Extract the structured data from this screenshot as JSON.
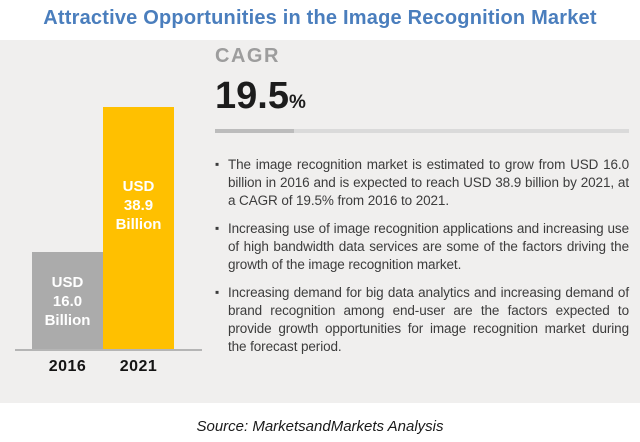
{
  "page": {
    "title": "Attractive Opportunities in the Image Recognition Market",
    "source_note": "Source: MarketsandMarkets Analysis"
  },
  "cagr": {
    "label": "CAGR",
    "value": "19.5",
    "unit": "%"
  },
  "chart": {
    "bars": [
      {
        "year": "2016",
        "value_lines": [
          "USD",
          "16.0",
          "Billion"
        ],
        "color": "#ababab"
      },
      {
        "year": "2021",
        "value_lines": [
          "USD",
          "38.9",
          "Billion"
        ],
        "color": "#ffc000"
      }
    ]
  },
  "bullets": [
    "The image recognition market is estimated to grow from USD 16.0 billion in 2016 and is expected to reach USD 38.9 billion by 2021, at a CAGR of 19.5% from 2016 to 2021.",
    "Increasing use of image recognition applications and increasing use of high bandwidth data services are some of the factors driving the growth of the image recognition market.",
    "Increasing demand for big data analytics and increasing demand of brand recognition among end-user are the factors expected to provide growth opportunities for image recognition market during the forecast period."
  ],
  "icons": {
    "bullet": "▪"
  },
  "colors": {
    "title_blue": "#4a7ebd",
    "panel_bg": "#f0efee",
    "bar_2016_gray": "#ababab",
    "bar_2021_yellow": "#ffc000",
    "cagr_label_gray": "#9d9d9d",
    "body_text": "#3c3c3c"
  },
  "chart_data": {
    "type": "bar",
    "categories": [
      "2016",
      "2021"
    ],
    "values": [
      16.0,
      38.9
    ],
    "unit": "USD Billion",
    "bar_labels": [
      "USD 16.0 Billion",
      "USD 38.9 Billion"
    ],
    "bar_colors": [
      "#ababab",
      "#ffc000"
    ],
    "title": "Attractive Opportunities in the Image Recognition Market",
    "xlabel": "",
    "ylabel": "",
    "cagr_percent": 19.5,
    "cagr_period": "2016 to 2021",
    "legend": false,
    "grid": false
  }
}
